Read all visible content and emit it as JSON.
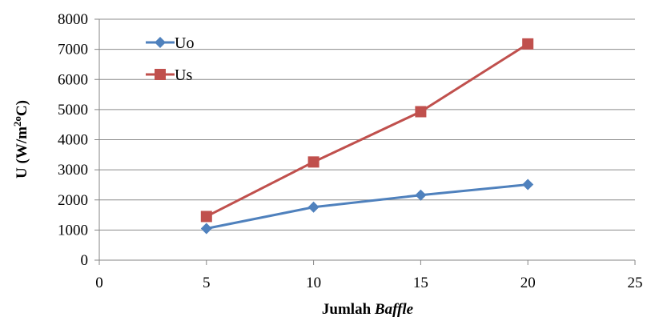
{
  "chart_data": {
    "type": "scatter",
    "mode": "lines+markers",
    "xlabel_main": "Jumlah ",
    "xlabel_italic": "Baffle",
    "ylabel": "U (W/m",
    "ylabel_sup": "2o",
    "ylabel_end": "C)",
    "xlim": [
      0,
      25
    ],
    "ylim": [
      0,
      8000
    ],
    "xticks": [
      0,
      5,
      10,
      15,
      20,
      25
    ],
    "yticks": [
      0,
      1000,
      2000,
      3000,
      4000,
      5000,
      6000,
      7000,
      8000
    ],
    "grid": true,
    "legend_position": "top-left",
    "series": [
      {
        "name": "Uo",
        "color": "#4f81bd",
        "marker": "diamond",
        "x": [
          5,
          10,
          15,
          20
        ],
        "y": [
          1050,
          1760,
          2160,
          2510
        ]
      },
      {
        "name": "Us",
        "color": "#c0504d",
        "marker": "square",
        "x": [
          5,
          10,
          15,
          20
        ],
        "y": [
          1450,
          3260,
          4930,
          7180
        ]
      }
    ]
  }
}
